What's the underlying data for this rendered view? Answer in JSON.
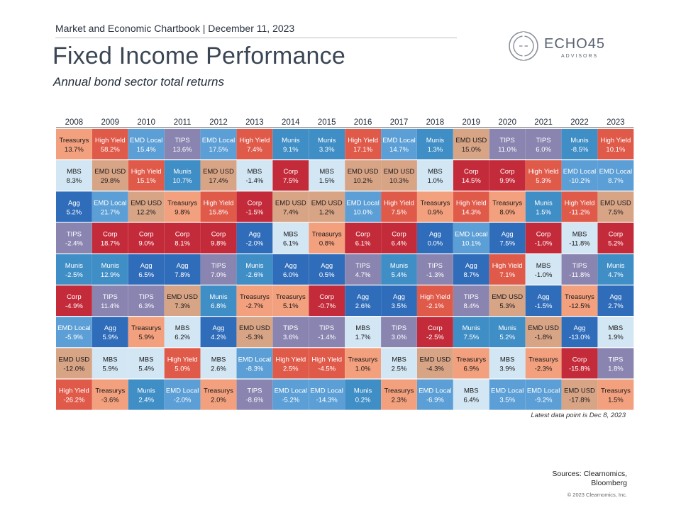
{
  "header": {
    "line": "Market and Economic Chartbook | December 11, 2023",
    "title": "Fixed Income Performance",
    "subtitle": "Annual bond sector total returns"
  },
  "logo": {
    "name": "ECHO45",
    "tagline": "ADVISORS"
  },
  "colors": {
    "Treasurys": "#f2a07e",
    "High Yield": "#e05a4a",
    "EMD Local": "#5b9fd6",
    "TIPS": "#8a84b0",
    "Munis": "#3f8ec6",
    "MBS": "#d3e6f3",
    "EMD USD": "#d8a486",
    "Agg": "#2f6cba",
    "Corp": "#c42b3a"
  },
  "chart_data": {
    "type": "table",
    "title": "Annual bond sector total returns",
    "years": [
      "2008",
      "2009",
      "2010",
      "2011",
      "2012",
      "2013",
      "2014",
      "2015",
      "2016",
      "2017",
      "2018",
      "2019",
      "2020",
      "2021",
      "2022",
      "2023"
    ],
    "columns": [
      [
        [
          "Treasurys",
          "13.7%"
        ],
        [
          "MBS",
          "8.3%"
        ],
        [
          "Agg",
          "5.2%"
        ],
        [
          "TIPS",
          "-2.4%"
        ],
        [
          "Munis",
          "-2.5%"
        ],
        [
          "Corp",
          "-4.9%"
        ],
        [
          "EMD Local",
          "-5.9%"
        ],
        [
          "EMD USD",
          "-12.0%"
        ],
        [
          "High Yield",
          "-26.2%"
        ]
      ],
      [
        [
          "High Yield",
          "58.2%"
        ],
        [
          "EMD USD",
          "29.8%"
        ],
        [
          "EMD Local",
          "21.7%"
        ],
        [
          "Corp",
          "18.7%"
        ],
        [
          "Munis",
          "12.9%"
        ],
        [
          "TIPS",
          "11.4%"
        ],
        [
          "Agg",
          "5.9%"
        ],
        [
          "MBS",
          "5.9%"
        ],
        [
          "Treasurys",
          "-3.6%"
        ]
      ],
      [
        [
          "EMD Local",
          "15.4%"
        ],
        [
          "High Yield",
          "15.1%"
        ],
        [
          "EMD USD",
          "12.2%"
        ],
        [
          "Corp",
          "9.0%"
        ],
        [
          "Agg",
          "6.5%"
        ],
        [
          "TIPS",
          "6.3%"
        ],
        [
          "Treasurys",
          "5.9%"
        ],
        [
          "MBS",
          "5.4%"
        ],
        [
          "Munis",
          "2.4%"
        ]
      ],
      [
        [
          "TIPS",
          "13.6%"
        ],
        [
          "Munis",
          "10.7%"
        ],
        [
          "Treasurys",
          "9.8%"
        ],
        [
          "Corp",
          "8.1%"
        ],
        [
          "Agg",
          "7.8%"
        ],
        [
          "EMD USD",
          "7.3%"
        ],
        [
          "MBS",
          "6.2%"
        ],
        [
          "High Yield",
          "5.0%"
        ],
        [
          "EMD Local",
          "-2.0%"
        ]
      ],
      [
        [
          "EMD Local",
          "17.5%"
        ],
        [
          "EMD USD",
          "17.4%"
        ],
        [
          "High Yield",
          "15.8%"
        ],
        [
          "Corp",
          "9.8%"
        ],
        [
          "TIPS",
          "7.0%"
        ],
        [
          "Munis",
          "6.8%"
        ],
        [
          "Agg",
          "4.2%"
        ],
        [
          "MBS",
          "2.6%"
        ],
        [
          "Treasurys",
          "2.0%"
        ]
      ],
      [
        [
          "High Yield",
          "7.4%"
        ],
        [
          "MBS",
          "-1.4%"
        ],
        [
          "Corp",
          "-1.5%"
        ],
        [
          "Agg",
          "-2.0%"
        ],
        [
          "Munis",
          "-2.6%"
        ],
        [
          "Treasurys",
          "-2.7%"
        ],
        [
          "EMD USD",
          "-5.3%"
        ],
        [
          "EMD Local",
          "-8.3%"
        ],
        [
          "TIPS",
          "-8.6%"
        ]
      ],
      [
        [
          "Munis",
          "9.1%"
        ],
        [
          "Corp",
          "7.5%"
        ],
        [
          "EMD USD",
          "7.4%"
        ],
        [
          "MBS",
          "6.1%"
        ],
        [
          "Agg",
          "6.0%"
        ],
        [
          "Treasurys",
          "5.1%"
        ],
        [
          "TIPS",
          "3.6%"
        ],
        [
          "High Yield",
          "2.5%"
        ],
        [
          "EMD Local",
          "-5.2%"
        ]
      ],
      [
        [
          "Munis",
          "3.3%"
        ],
        [
          "MBS",
          "1.5%"
        ],
        [
          "EMD USD",
          "1.2%"
        ],
        [
          "Treasurys",
          "0.8%"
        ],
        [
          "Agg",
          "0.5%"
        ],
        [
          "Corp",
          "-0.7%"
        ],
        [
          "TIPS",
          "-1.4%"
        ],
        [
          "High Yield",
          "-4.5%"
        ],
        [
          "EMD Local",
          "-14.3%"
        ]
      ],
      [
        [
          "High Yield",
          "17.1%"
        ],
        [
          "EMD USD",
          "10.2%"
        ],
        [
          "EMD Local",
          "10.0%"
        ],
        [
          "Corp",
          "6.1%"
        ],
        [
          "TIPS",
          "4.7%"
        ],
        [
          "Agg",
          "2.6%"
        ],
        [
          "MBS",
          "1.7%"
        ],
        [
          "Treasurys",
          "1.0%"
        ],
        [
          "Munis",
          "0.2%"
        ]
      ],
      [
        [
          "EMD Local",
          "14.7%"
        ],
        [
          "EMD USD",
          "10.3%"
        ],
        [
          "High Yield",
          "7.5%"
        ],
        [
          "Corp",
          "6.4%"
        ],
        [
          "Munis",
          "5.4%"
        ],
        [
          "Agg",
          "3.5%"
        ],
        [
          "TIPS",
          "3.0%"
        ],
        [
          "MBS",
          "2.5%"
        ],
        [
          "Treasurys",
          "2.3%"
        ]
      ],
      [
        [
          "Munis",
          "1.3%"
        ],
        [
          "MBS",
          "1.0%"
        ],
        [
          "Treasurys",
          "0.9%"
        ],
        [
          "Agg",
          "0.0%"
        ],
        [
          "TIPS",
          "-1.3%"
        ],
        [
          "High Yield",
          "-2.1%"
        ],
        [
          "Corp",
          "-2.5%"
        ],
        [
          "EMD USD",
          "-4.3%"
        ],
        [
          "EMD Local",
          "-6.9%"
        ]
      ],
      [
        [
          "EMD USD",
          "15.0%"
        ],
        [
          "Corp",
          "14.5%"
        ],
        [
          "High Yield",
          "14.3%"
        ],
        [
          "EMD Local",
          "10.1%"
        ],
        [
          "Agg",
          "8.7%"
        ],
        [
          "TIPS",
          "8.4%"
        ],
        [
          "Munis",
          "7.5%"
        ],
        [
          "Treasurys",
          "6.9%"
        ],
        [
          "MBS",
          "6.4%"
        ]
      ],
      [
        [
          "TIPS",
          "11.0%"
        ],
        [
          "Corp",
          "9.9%"
        ],
        [
          "Treasurys",
          "8.0%"
        ],
        [
          "Agg",
          "7.5%"
        ],
        [
          "High Yield",
          "7.1%"
        ],
        [
          "EMD USD",
          "5.3%"
        ],
        [
          "Munis",
          "5.2%"
        ],
        [
          "MBS",
          "3.9%"
        ],
        [
          "EMD Local",
          "3.5%"
        ]
      ],
      [
        [
          "TIPS",
          "6.0%"
        ],
        [
          "High Yield",
          "5.3%"
        ],
        [
          "Munis",
          "1.5%"
        ],
        [
          "Corp",
          "-1.0%"
        ],
        [
          "MBS",
          "-1.0%"
        ],
        [
          "Agg",
          "-1.5%"
        ],
        [
          "EMD USD",
          "-1.8%"
        ],
        [
          "Treasurys",
          "-2.3%"
        ],
        [
          "EMD Local",
          "-9.2%"
        ]
      ],
      [
        [
          "Munis",
          "-8.5%"
        ],
        [
          "EMD Local",
          "-10.2%"
        ],
        [
          "High Yield",
          "-11.2%"
        ],
        [
          "MBS",
          "-11.8%"
        ],
        [
          "TIPS",
          "-11.8%"
        ],
        [
          "Treasurys",
          "-12.5%"
        ],
        [
          "Agg",
          "-13.0%"
        ],
        [
          "Corp",
          "-15.8%"
        ],
        [
          "EMD USD",
          "-17.8%"
        ]
      ],
      [
        [
          "High Yield",
          "10.1%"
        ],
        [
          "EMD Local",
          "8.7%"
        ],
        [
          "EMD USD",
          "7.5%"
        ],
        [
          "Corp",
          "5.2%"
        ],
        [
          "Munis",
          "4.7%"
        ],
        [
          "Agg",
          "2.7%"
        ],
        [
          "MBS",
          "1.9%"
        ],
        [
          "TIPS",
          "1.8%"
        ],
        [
          "Treasurys",
          "1.5%"
        ]
      ]
    ]
  },
  "footnote": "Latest data point is Dec 8, 2023",
  "sources": {
    "line1": "Sources: Clearnomics,",
    "line2": "Bloomberg"
  },
  "copyright": "© 2023 Clearnomics, Inc."
}
